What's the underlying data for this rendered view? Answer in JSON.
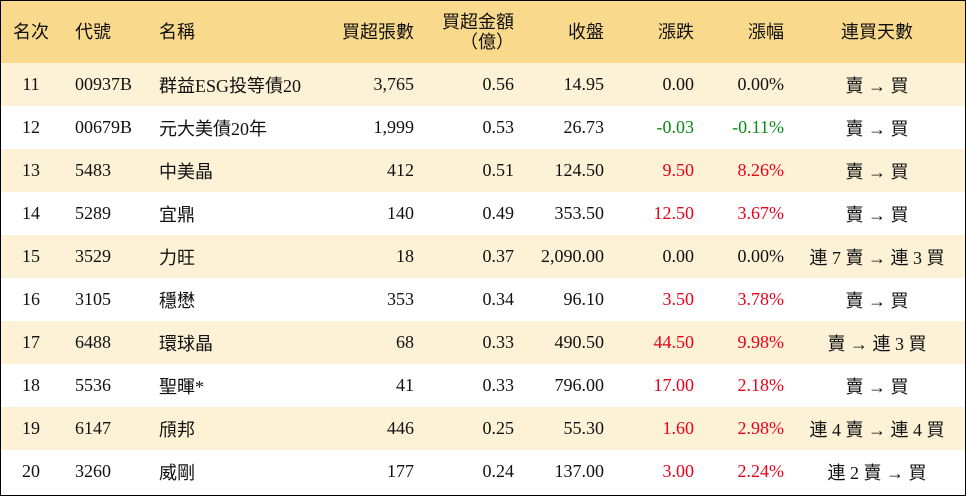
{
  "table": {
    "header": [
      "名次",
      "代號",
      "名稱",
      "買超張數",
      "買超金額\n（億）",
      "收盤",
      "漲跌",
      "漲幅",
      "連買天數"
    ],
    "rows": [
      [
        "11",
        "00937B",
        "群益ESG投等債20",
        "3,765",
        "0.56",
        "14.95",
        "0.00",
        "0.00%",
        "賣 → 買"
      ],
      [
        "12",
        "00679B",
        "元大美債20年",
        "1,999",
        "0.53",
        "26.73",
        "-0.03",
        "-0.11%",
        "賣 → 買"
      ],
      [
        "13",
        "5483",
        "中美晶",
        "412",
        "0.51",
        "124.50",
        "9.50",
        "8.26%",
        "賣 → 買"
      ],
      [
        "14",
        "5289",
        "宜鼎",
        "140",
        "0.49",
        "353.50",
        "12.50",
        "3.67%",
        "賣 → 買"
      ],
      [
        "15",
        "3529",
        "力旺",
        "18",
        "0.37",
        "2,090.00",
        "0.00",
        "0.00%",
        "連 7 賣 → 連 3 買"
      ],
      [
        "16",
        "3105",
        "穩懋",
        "353",
        "0.34",
        "96.10",
        "3.50",
        "3.78%",
        "賣 → 買"
      ],
      [
        "17",
        "6488",
        "環球晶",
        "68",
        "0.33",
        "490.50",
        "44.50",
        "9.98%",
        "賣 → 連 3 買"
      ],
      [
        "18",
        "5536",
        "聖暉*",
        "41",
        "0.33",
        "796.00",
        "17.00",
        "2.18%",
        "賣 → 買"
      ],
      [
        "19",
        "6147",
        "頎邦",
        "446",
        "0.25",
        "55.30",
        "1.60",
        "2.98%",
        "連 4 賣 → 連 4 買"
      ],
      [
        "20",
        "3260",
        "威剛",
        "177",
        "0.24",
        "137.00",
        "3.00",
        "2.24%",
        "連 2 賣 → 買"
      ]
    ]
  }
}
